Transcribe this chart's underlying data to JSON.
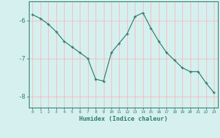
{
  "x": [
    0,
    1,
    2,
    3,
    4,
    5,
    6,
    7,
    8,
    9,
    10,
    11,
    12,
    13,
    14,
    15,
    16,
    17,
    18,
    19,
    20,
    21,
    22,
    23
  ],
  "y": [
    -5.85,
    -5.95,
    -6.1,
    -6.3,
    -6.55,
    -6.7,
    -6.85,
    -7.0,
    -7.55,
    -7.6,
    -6.85,
    -6.6,
    -6.35,
    -5.9,
    -5.8,
    -6.2,
    -6.55,
    -6.85,
    -7.05,
    -7.25,
    -7.35,
    -7.35,
    -7.65,
    -7.9
  ],
  "line_color": "#2e7d6e",
  "marker": "+",
  "marker_size": 3,
  "bg_color": "#d6f0ef",
  "grid_color": "#f4b8b8",
  "axis_color": "#2e7d6e",
  "xlabel": "Humidex (Indice chaleur)",
  "yticks": [
    -6,
    -7,
    -8
  ],
  "ylim": [
    -8.3,
    -5.5
  ],
  "xlim": [
    -0.5,
    23.5
  ]
}
